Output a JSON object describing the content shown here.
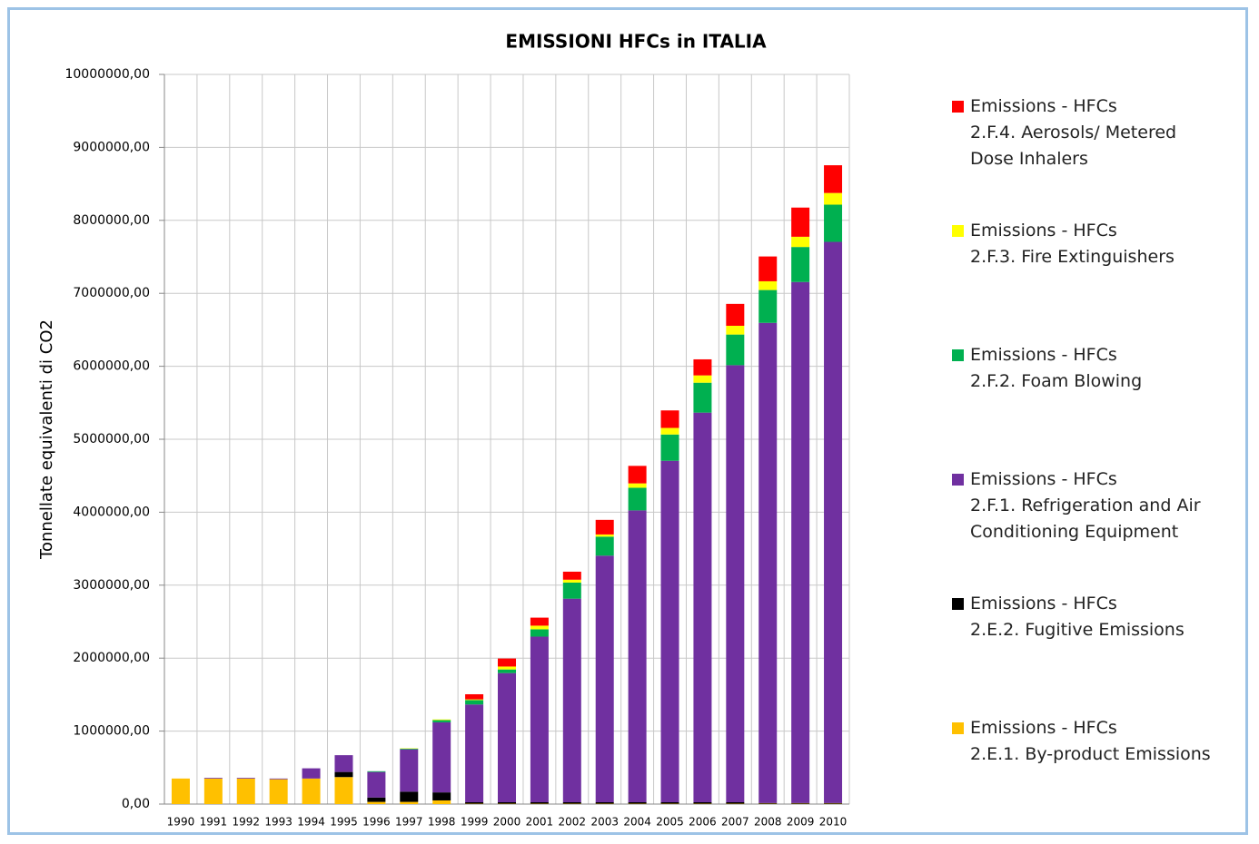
{
  "chart_data": {
    "type": "stacked_bar",
    "title": "EMISSIONI HFCs in ITALIA",
    "y_label": "Tonnellate equivalenti di CO2",
    "categories": [
      "1990",
      "1991",
      "1992",
      "1993",
      "1994",
      "1995",
      "1996",
      "1997",
      "1998",
      "1999",
      "2000",
      "2001",
      "2002",
      "2003",
      "2004",
      "2005",
      "2006",
      "2007",
      "2008",
      "2009",
      "2010"
    ],
    "series": [
      {
        "name": "Emissions - HFCs\n2.E.1. By-product Emissions",
        "color": "#ffc000",
        "values": [
          350000,
          350000,
          350000,
          340000,
          350000,
          370000,
          30000,
          30000,
          50000,
          5000,
          5000,
          5000,
          5000,
          5000,
          5000,
          5000,
          5000,
          5000,
          5000,
          5000,
          5000
        ]
      },
      {
        "name": "Emissions - HFCs\n2.E.2. Fugitive Emissions",
        "color": "#000000",
        "values": [
          0,
          0,
          0,
          0,
          0,
          70000,
          60000,
          140000,
          110000,
          20000,
          20000,
          20000,
          20000,
          20000,
          20000,
          20000,
          20000,
          20000,
          10000,
          10000,
          10000
        ]
      },
      {
        "name": "Emissions - HFCs\n2.F.1. Refrigeration and Air\nConditioning Equipment",
        "color": "#7030a0",
        "values": [
          0,
          10000,
          10000,
          10000,
          140000,
          230000,
          350000,
          580000,
          960000,
          1340000,
          1770000,
          2270000,
          2790000,
          3380000,
          4000000,
          4680000,
          5340000,
          5990000,
          6580000,
          7140000,
          7690000
        ]
      },
      {
        "name": "Emissions - HFCs\n2.F.2. Foam Blowing",
        "color": "#00b050",
        "values": [
          0,
          0,
          0,
          0,
          0,
          0,
          10000,
          10000,
          30000,
          60000,
          50000,
          100000,
          220000,
          260000,
          310000,
          360000,
          410000,
          420000,
          450000,
          480000,
          510000
        ]
      },
      {
        "name": "Emissions - HFCs\n2.F.3. Fire Extinguishers",
        "color": "#ffff00",
        "values": [
          0,
          0,
          0,
          0,
          0,
          0,
          0,
          5000,
          10000,
          10000,
          40000,
          50000,
          40000,
          30000,
          60000,
          90000,
          100000,
          120000,
          120000,
          140000,
          160000
        ]
      },
      {
        "name": "Emissions - HFCs\n2.F.4. Aerosols/ Metered\nDose Inhalers",
        "color": "#ff0000",
        "values": [
          0,
          0,
          0,
          0,
          0,
          0,
          0,
          0,
          0,
          70000,
          110000,
          110000,
          110000,
          200000,
          240000,
          240000,
          220000,
          300000,
          340000,
          400000,
          380000
        ]
      }
    ],
    "ylim": [
      0,
      10000000
    ],
    "yticks": [
      {
        "value": 0,
        "label": "0,00"
      },
      {
        "value": 1000000,
        "label": "1000000,00"
      },
      {
        "value": 2000000,
        "label": "2000000,00"
      },
      {
        "value": 3000000,
        "label": "3000000,00"
      },
      {
        "value": 4000000,
        "label": "4000000,00"
      },
      {
        "value": 5000000,
        "label": "5000000,00"
      },
      {
        "value": 6000000,
        "label": "6000000,00"
      },
      {
        "value": 7000000,
        "label": "7000000,00"
      },
      {
        "value": 8000000,
        "label": "8000000,00"
      },
      {
        "value": 9000000,
        "label": "9000000,00"
      },
      {
        "value": 10000000,
        "label": "10000000,00"
      }
    ],
    "grid": true,
    "legend": "right"
  }
}
